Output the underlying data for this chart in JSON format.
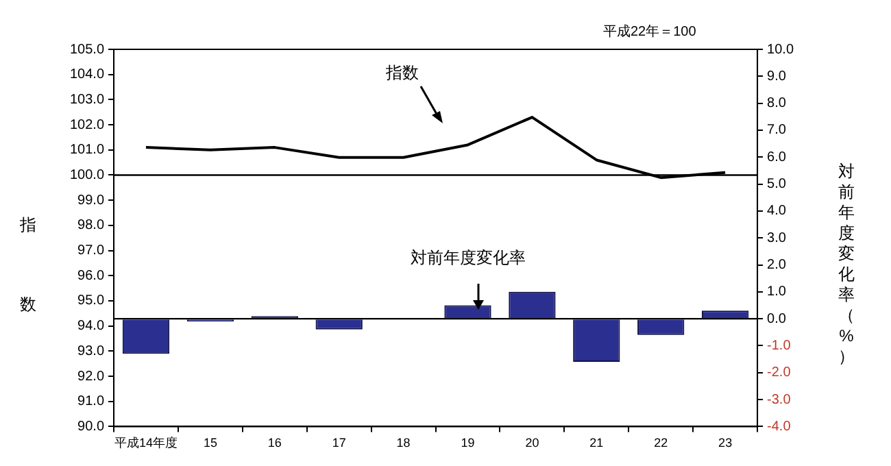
{
  "chart_data": {
    "type": "bar",
    "ylabel": "指数",
    "y2label": "対前年度変化率（%）",
    "categories": [
      "平成14年度",
      "15",
      "16",
      "17",
      "18",
      "19",
      "20",
      "21",
      "22",
      "23"
    ],
    "series": [
      {
        "name": "対前年度変化率",
        "axis": "y2",
        "color": "#2b2f8f",
        "values": [
          -1.3,
          -0.1,
          0.1,
          -0.4,
          0.0,
          0.5,
          1.0,
          -1.6,
          -0.6,
          0.3
        ]
      },
      {
        "name": "指数",
        "type": "line",
        "axis": "y",
        "color": "#000000",
        "values": [
          101.1,
          101.0,
          101.1,
          100.7,
          100.7,
          101.2,
          102.3,
          100.6,
          99.9,
          100.1
        ]
      }
    ],
    "ylim": [
      90,
      105
    ],
    "yticks": [
      {
        "value": 90,
        "label": "90.0"
      },
      {
        "value": 91,
        "label": "91.0"
      },
      {
        "value": 92,
        "label": "92.0"
      },
      {
        "value": 93,
        "label": "93.0"
      },
      {
        "value": 94,
        "label": "94.0"
      },
      {
        "value": 95,
        "label": "95.0"
      },
      {
        "value": 96,
        "label": "96.0"
      },
      {
        "value": 97,
        "label": "97.0"
      },
      {
        "value": 98,
        "label": "98.0"
      },
      {
        "value": 99,
        "label": "99.0"
      },
      {
        "value": 100,
        "label": "100.0"
      },
      {
        "value": 101,
        "label": "101.0"
      },
      {
        "value": 102,
        "label": "102.0"
      },
      {
        "value": 103,
        "label": "103.0"
      },
      {
        "value": 104,
        "label": "104.0"
      },
      {
        "value": 105,
        "label": "105.0"
      }
    ],
    "y2lim": [
      -4,
      10
    ],
    "y2ticks": [
      {
        "value": -4,
        "label": "-4.0"
      },
      {
        "value": -3,
        "label": "-3.0"
      },
      {
        "value": -2,
        "label": "-2.0"
      },
      {
        "value": -1,
        "label": "-1.0"
      },
      {
        "value": 0,
        "label": "0.0"
      },
      {
        "value": 1,
        "label": "1.0"
      },
      {
        "value": 2,
        "label": "2.0"
      },
      {
        "value": 3,
        "label": "3.0"
      },
      {
        "value": 4,
        "label": "4.0"
      },
      {
        "value": 5,
        "label": "5.0"
      },
      {
        "value": 6,
        "label": "6.0"
      },
      {
        "value": 7,
        "label": "7.0"
      },
      {
        "value": 8,
        "label": "8.0"
      },
      {
        "value": 9,
        "label": "9.0"
      },
      {
        "value": 10,
        "label": "10.0"
      }
    ],
    "ref_lines": [
      {
        "axis": "y",
        "value": 100,
        "color": "#000000"
      },
      {
        "axis": "y2",
        "value": 0,
        "color": "#000000"
      }
    ],
    "annotations": [
      "平成22年＝100"
    ],
    "grid": false,
    "legend": false,
    "marker": "none",
    "line_style": "solid"
  }
}
